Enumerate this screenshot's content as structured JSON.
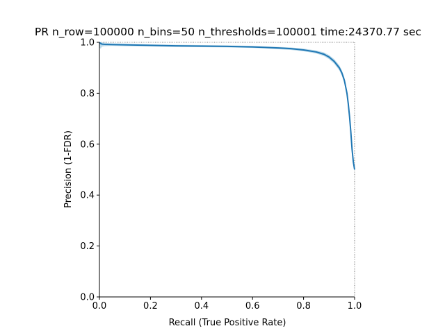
{
  "chart_data": {
    "type": "line",
    "title": "PR n_row=100000 n_bins=50 n_thresholds=100001 time:24370.77 sec",
    "xlabel": "Recall (True Positive Rate)",
    "ylabel": "Precision (1-FDR)",
    "xlim": [
      0.0,
      1.0
    ],
    "ylim": [
      0.0,
      1.0
    ],
    "xticks": [
      "0.0",
      "0.2",
      "0.4",
      "0.6",
      "0.8",
      "1.0"
    ],
    "yticks": [
      "0.0",
      "0.2",
      "0.4",
      "0.6",
      "0.8",
      "1.0"
    ],
    "grid": false,
    "legend": "none",
    "line_color": "#1f77b4",
    "band_color": "#9ecae1",
    "reference_line_color": "#555555",
    "series": [
      {
        "x": [
          0.0,
          0.005,
          0.01,
          0.02,
          0.05,
          0.1,
          0.2,
          0.3,
          0.4,
          0.5,
          0.6,
          0.65,
          0.7,
          0.75,
          0.8,
          0.85,
          0.88,
          0.9,
          0.92,
          0.94,
          0.95,
          0.96,
          0.97,
          0.975,
          0.98,
          0.985,
          0.99,
          0.995,
          1.0
        ],
        "y": [
          1.0,
          0.995,
          0.993,
          0.992,
          0.991,
          0.99,
          0.988,
          0.986,
          0.985,
          0.984,
          0.982,
          0.98,
          0.978,
          0.975,
          0.97,
          0.962,
          0.953,
          0.942,
          0.925,
          0.9,
          0.88,
          0.85,
          0.8,
          0.76,
          0.71,
          0.65,
          0.58,
          0.53,
          0.5
        ],
        "lower": [
          0.98,
          0.975,
          0.983,
          0.985,
          0.986,
          0.985,
          0.984,
          0.982,
          0.981,
          0.98,
          0.978,
          0.976,
          0.973,
          0.97,
          0.965,
          0.956,
          0.946,
          0.934,
          0.916,
          0.89,
          0.87,
          0.838,
          0.788,
          0.748,
          0.698,
          0.638,
          0.568,
          0.52,
          0.495
        ],
        "upper": [
          1.0,
          1.0,
          1.0,
          0.998,
          0.996,
          0.995,
          0.992,
          0.99,
          0.989,
          0.988,
          0.986,
          0.984,
          0.982,
          0.98,
          0.975,
          0.968,
          0.96,
          0.95,
          0.934,
          0.91,
          0.89,
          0.862,
          0.812,
          0.772,
          0.722,
          0.662,
          0.592,
          0.54,
          0.505
        ]
      }
    ],
    "reference_lines": {
      "x": 1.0,
      "y": 1.0
    }
  }
}
